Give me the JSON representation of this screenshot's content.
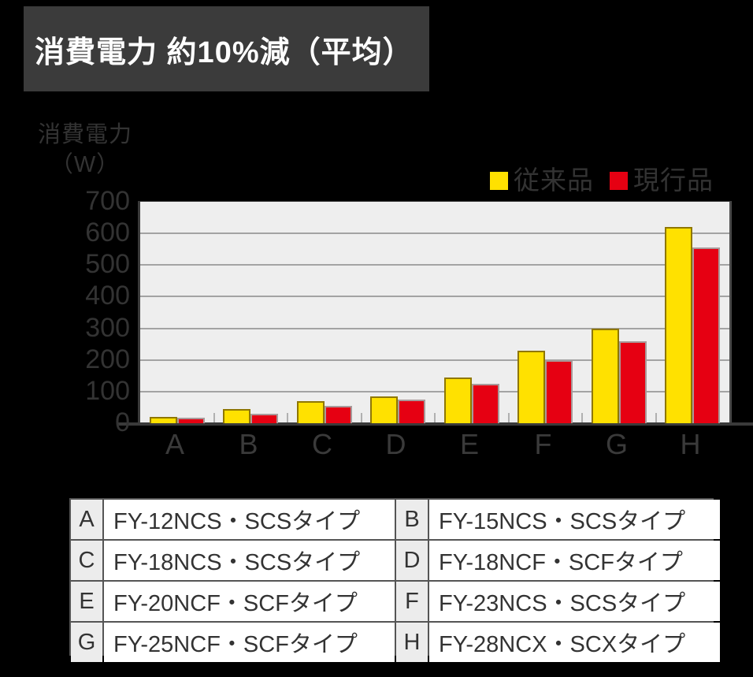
{
  "title": "消費電力 約10%減（平均）",
  "y_axis": {
    "title": "消費電力",
    "unit": "（W）"
  },
  "legend": [
    {
      "label": "従来品",
      "color": "#ffe100"
    },
    {
      "label": "現行品",
      "color": "#e60012"
    }
  ],
  "colors": {
    "background": "#000000",
    "title_box": "#3b3b3b",
    "title_text": "#ffffff",
    "axis_text": "#333333",
    "plot_background": "#eeeeee",
    "gridline": "#a3a3a3",
    "previous_product": "#ffe100",
    "current_product": "#e60012"
  },
  "chart_data": {
    "type": "bar",
    "categories": [
      "A",
      "B",
      "C",
      "D",
      "E",
      "F",
      "G",
      "H"
    ],
    "series": [
      {
        "name": "従来品",
        "color": "#ffe100",
        "values": [
          20,
          45,
          70,
          85,
          145,
          230,
          300,
          620
        ]
      },
      {
        "name": "現行品",
        "color": "#e60012",
        "values": [
          18,
          30,
          55,
          75,
          125,
          200,
          260,
          555
        ]
      }
    ],
    "title": "消費電力 約10%減（平均）",
    "xlabel": "",
    "ylabel": "消費電力（W）",
    "ylim": [
      0,
      700
    ],
    "y_ticks": [
      0,
      100,
      200,
      300,
      400,
      500,
      600,
      700
    ],
    "grid": true,
    "legend_position": "top-right"
  },
  "table": {
    "items": [
      {
        "key": "A",
        "model": "FY-12NCS・SCSタイプ"
      },
      {
        "key": "B",
        "model": "FY-15NCS・SCSタイプ"
      },
      {
        "key": "C",
        "model": "FY-18NCS・SCSタイプ"
      },
      {
        "key": "D",
        "model": "FY-18NCF・SCFタイプ"
      },
      {
        "key": "E",
        "model": "FY-20NCF・SCFタイプ"
      },
      {
        "key": "F",
        "model": "FY-23NCS・SCSタイプ"
      },
      {
        "key": "G",
        "model": "FY-25NCF・SCFタイプ"
      },
      {
        "key": "H",
        "model": "FY-28NCX・SCXタイプ"
      }
    ]
  }
}
